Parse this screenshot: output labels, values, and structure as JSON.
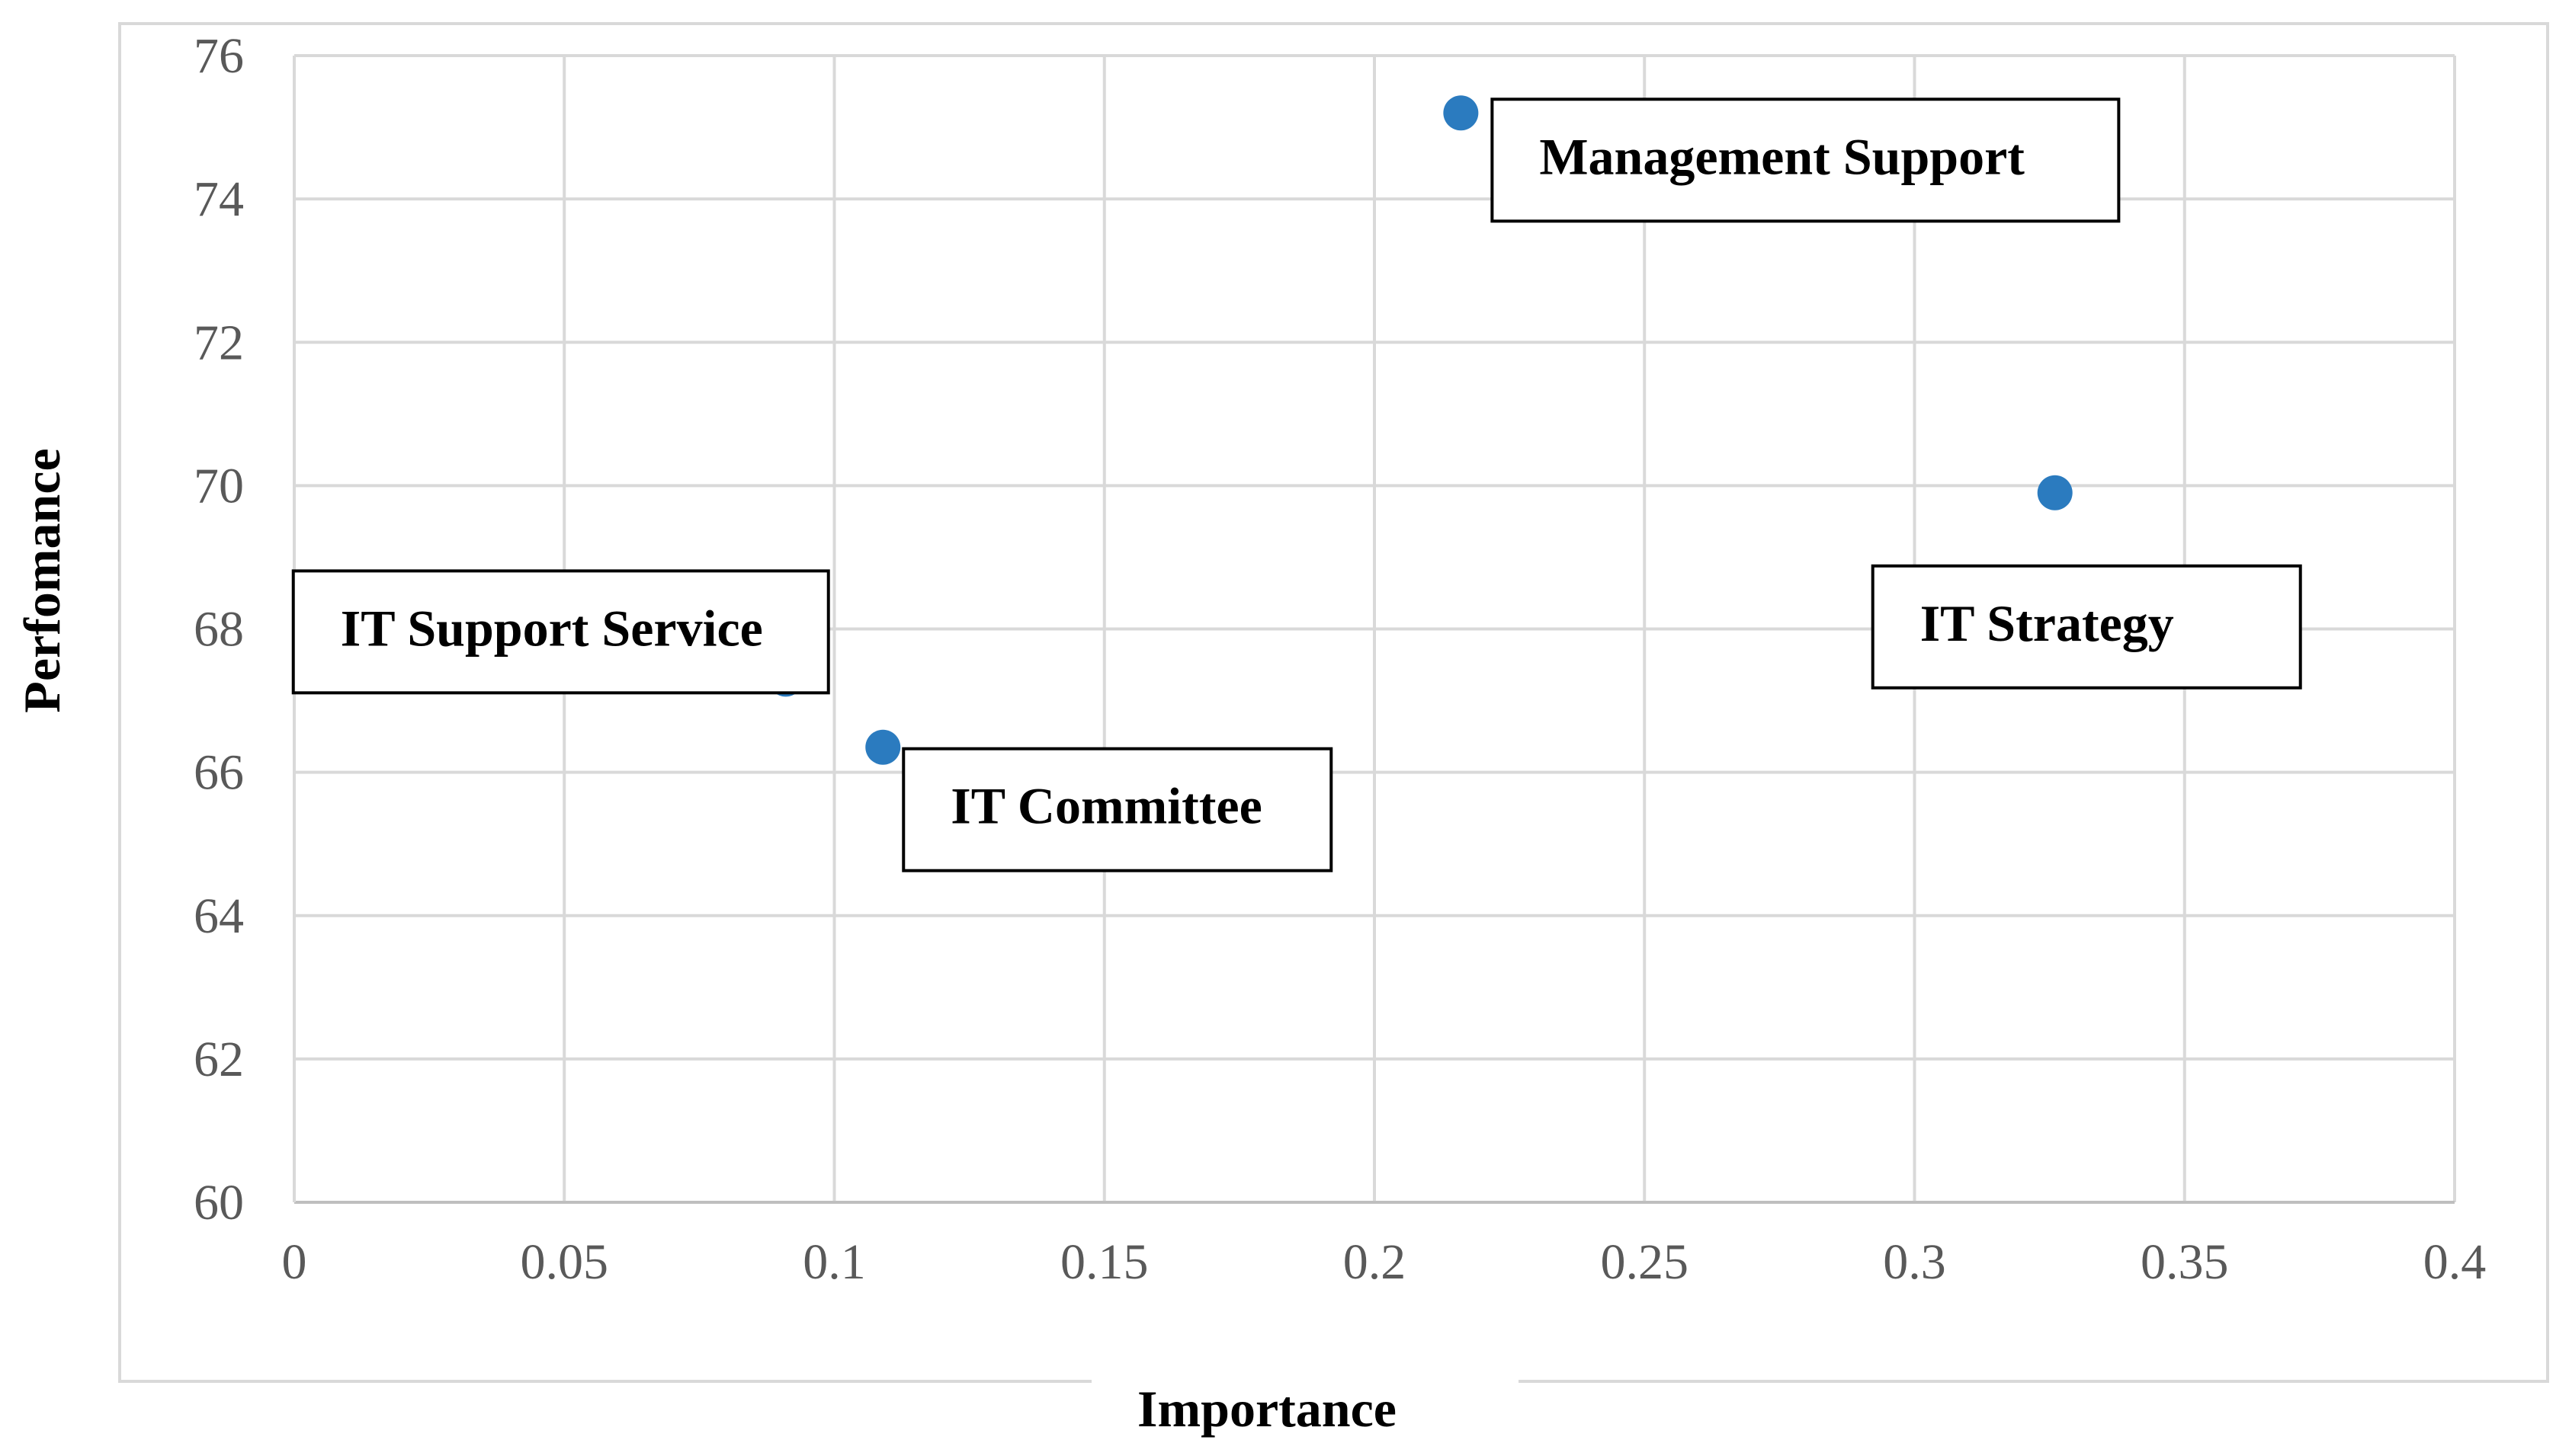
{
  "chart_data": {
    "type": "scatter",
    "title": "",
    "xlabel": "Importance",
    "ylabel": "Perfomance",
    "xlim": [
      0,
      0.4
    ],
    "ylim": [
      60,
      76
    ],
    "x_ticks": [
      "0",
      "0.05",
      "0.1",
      "0.15",
      "0.2",
      "0.25",
      "0.3",
      "0.35",
      "0.4"
    ],
    "y_ticks": [
      "60",
      "62",
      "64",
      "66",
      "68",
      "70",
      "72",
      "74",
      "76"
    ],
    "grid": true,
    "legend": "none",
    "marker_color": "#2B7BBF",
    "points": [
      {
        "label": "Management Support",
        "x": 0.216,
        "y": 75.2
      },
      {
        "label": "IT Strategy",
        "x": 0.326,
        "y": 69.9
      },
      {
        "label": "IT Support Service",
        "x": 0.091,
        "y": 67.3
      },
      {
        "label": "IT Committee",
        "x": 0.109,
        "y": 66.35
      }
    ]
  }
}
